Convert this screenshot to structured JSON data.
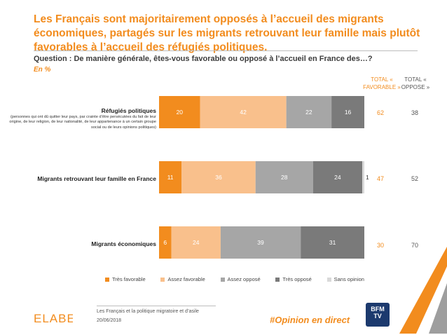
{
  "title": "Les Français sont majoritairement opposés à l’accueil des migrants économiques, partagés sur les migrants retrouvant leur famille mais plutôt favorables à l’accueil des réfugiés politiques.",
  "question": "Question : De manière générale, êtes-vous favorable ou opposé à l’accueil en France des…?",
  "unit": "En %",
  "headers": {
    "favorable": "TOTAL « FAVORABLE »",
    "oppose": "TOTAL « OPPOSE »"
  },
  "rows": [
    {
      "label": "Réfugiés politiques",
      "note": "(personnes qui ont dû quitter leur pays, par crainte d’être persécutées du fait de leur origine, de leur religion, de leur nationalité, de leur appartenance à un certain groupe social ou de leurs opinions politiques)",
      "total_favorable": "62",
      "total_oppose": "38"
    },
    {
      "label": "Migrants retrouvant leur famille en France",
      "total_favorable": "47",
      "total_oppose": "52"
    },
    {
      "label": "Migrants économiques",
      "total_favorable": "30",
      "total_oppose": "70"
    }
  ],
  "chart_data": {
    "type": "bar",
    "orientation": "horizontal-stacked",
    "categories": [
      "Réfugiés politiques",
      "Migrants retrouvant leur famille en France",
      "Migrants économiques"
    ],
    "series": [
      {
        "name": "Très favorable",
        "color": "#F28C1E",
        "values": [
          20,
          11,
          6
        ]
      },
      {
        "name": "Assez favorable",
        "color": "#F9C08C",
        "values": [
          42,
          36,
          24
        ]
      },
      {
        "name": "Assez opposé",
        "color": "#A6A6A6",
        "values": [
          22,
          28,
          39
        ]
      },
      {
        "name": "Très opposé",
        "color": "#7A7A7A",
        "values": [
          16,
          24,
          31
        ]
      },
      {
        "name": "Sans opinion",
        "color": "#D9D9D9",
        "values": [
          0,
          1,
          0
        ]
      }
    ],
    "xlim": [
      0,
      100
    ],
    "legend": "bottom"
  },
  "footer": {
    "logo": "ELABE",
    "line1": "Les Français et la politique migratoire et d’asile",
    "line2": "20/06/2018",
    "hashtag": "#Opinion en direct",
    "channel_logo": "BFM TV"
  }
}
